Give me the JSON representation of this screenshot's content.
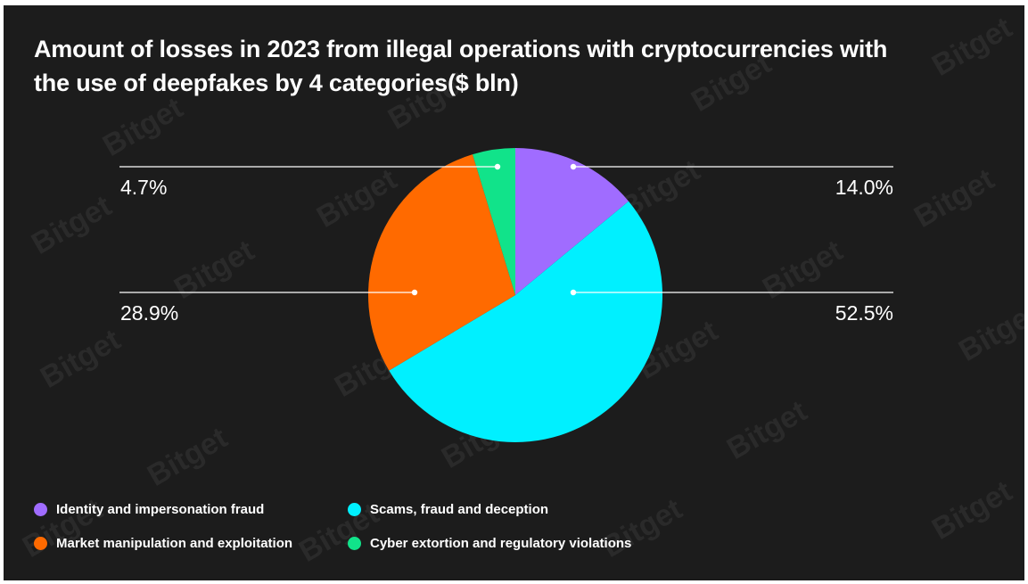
{
  "chart_data": {
    "type": "pie",
    "title": "Amount of losses in 2023 from illegal operations with cryptocurrencies with the use of deepfakes by 4 categories($ bln)",
    "unit": "%",
    "slices": [
      {
        "name": "Identity and impersonation fraud",
        "value": 14.0,
        "label": "14.0%",
        "color": "#a06cff"
      },
      {
        "name": "Scams, fraud and deception",
        "value": 52.5,
        "label": "52.5%",
        "color": "#00f0ff"
      },
      {
        "name": "Market manipulation and exploitation",
        "value": 28.9,
        "label": "28.9%",
        "color": "#ff6a00"
      },
      {
        "name": "Cyber extortion and regulatory violations",
        "value": 4.7,
        "label": "4.7%",
        "color": "#11e38a"
      }
    ],
    "legend_placement": "bottom-left",
    "start_angle": "12 o'clock",
    "direction": "clockwise"
  },
  "watermark": {
    "text": "Bitget",
    "color": "#2a2a2a"
  },
  "background_color": "#1c1c1c",
  "text_color": "#ffffff"
}
